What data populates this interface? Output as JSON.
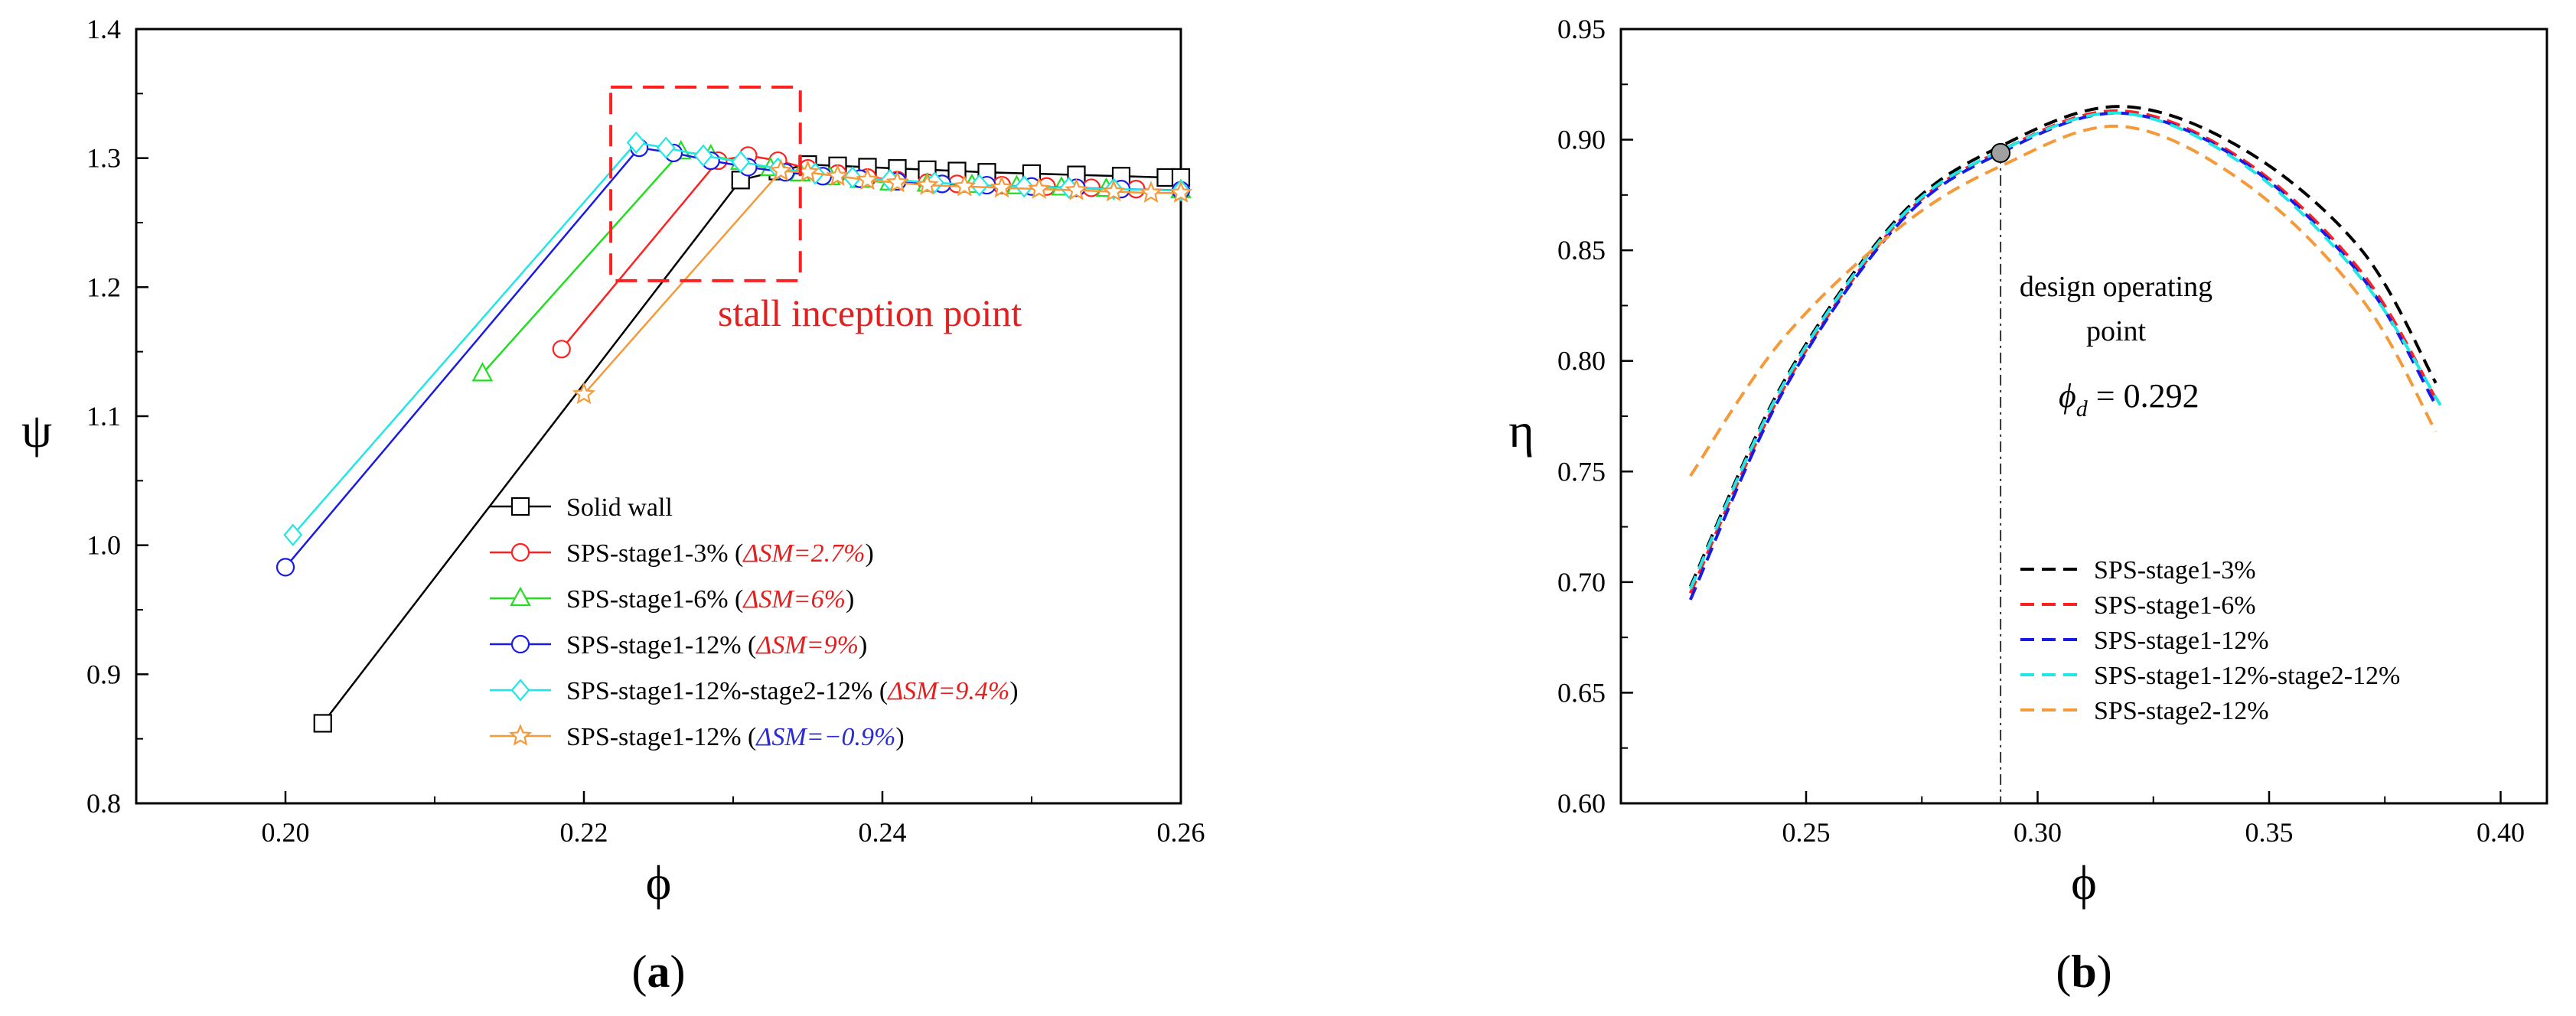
{
  "colors": {
    "black": "#000000",
    "red": "#ff2020",
    "green": "#22dd22",
    "blue": "#1a1ae6",
    "cyan": "#22e6e6",
    "orange": "#f59a3a",
    "annot_red": "#e32020",
    "annot_blue": "#2b2bd6",
    "marker_gray": "#a0a0a0"
  },
  "chart_data": [
    {
      "panel_label": "a",
      "type": "line",
      "xlabel": "ϕ",
      "ylabel": "ψ",
      "xlim": [
        0.19,
        0.26
      ],
      "ylim": [
        0.8,
        1.4
      ],
      "xticks": [
        0.2,
        0.22,
        0.24,
        0.26
      ],
      "xtick_labels": [
        "0.20",
        "0.22",
        "0.24",
        "0.26"
      ],
      "yticks": [
        0.8,
        0.9,
        1.0,
        1.1,
        1.2,
        1.3,
        1.4
      ],
      "ytick_labels": [
        "0.8",
        "0.9",
        "1.0",
        "1.1",
        "1.2",
        "1.3",
        "1.4"
      ],
      "annotation": "stall inception point",
      "stall_box": {
        "x": [
          0.2218,
          0.2345
        ],
        "y": [
          1.205,
          1.355
        ]
      },
      "series": [
        {
          "name": "Solid wall",
          "label": "Solid wall",
          "delta_sm": "",
          "delta_color": "",
          "marker": "square",
          "color": "#000000",
          "x": [
            0.2025,
            0.2305,
            0.233,
            0.235,
            0.237,
            0.239,
            0.241,
            0.243,
            0.245,
            0.247,
            0.25,
            0.253,
            0.256,
            0.259,
            0.26
          ],
          "y": [
            0.862,
            1.283,
            1.29,
            1.295,
            1.294,
            1.293,
            1.292,
            1.291,
            1.29,
            1.289,
            1.288,
            1.287,
            1.286,
            1.285,
            1.285
          ]
        },
        {
          "name": "SPS-stage1-3%",
          "label": "SPS-stage1-3%   (",
          "delta_sm": "ΔSM=2.7%",
          "delta_color": "#e32020",
          "marker": "circle",
          "color": "#ff2020",
          "x": [
            0.2185,
            0.229,
            0.231,
            0.233,
            0.235,
            0.237,
            0.239,
            0.241,
            0.243,
            0.245,
            0.248,
            0.251,
            0.254,
            0.257,
            0.26
          ],
          "y": [
            1.152,
            1.298,
            1.302,
            1.298,
            1.292,
            1.288,
            1.285,
            1.283,
            1.281,
            1.28,
            1.279,
            1.278,
            1.277,
            1.276,
            1.275
          ]
        },
        {
          "name": "SPS-stage1-6%",
          "label": "SPS-stage1-6%   (",
          "delta_sm": "ΔSM=6%",
          "delta_color": "#e32020",
          "marker": "triangle",
          "color": "#22dd22",
          "x": [
            0.2132,
            0.2265,
            0.2285,
            0.2305,
            0.2325,
            0.2345,
            0.2365,
            0.2385,
            0.2405,
            0.243,
            0.246,
            0.249,
            0.252,
            0.255,
            0.26
          ],
          "y": [
            1.133,
            1.305,
            1.302,
            1.297,
            1.292,
            1.288,
            1.285,
            1.283,
            1.281,
            1.28,
            1.279,
            1.278,
            1.277,
            1.276,
            1.275
          ]
        },
        {
          "name": "SPS-stage1-12%",
          "label": "SPS-stage1-12%  (",
          "delta_sm": "ΔSM=9%",
          "delta_color": "#e32020",
          "marker": "circle",
          "color": "#1a1ae6",
          "x": [
            0.2,
            0.2237,
            0.226,
            0.2285,
            0.231,
            0.2335,
            0.236,
            0.2385,
            0.241,
            0.244,
            0.247,
            0.25,
            0.253,
            0.256,
            0.26
          ],
          "y": [
            0.983,
            1.308,
            1.304,
            1.298,
            1.293,
            1.289,
            1.286,
            1.284,
            1.282,
            1.28,
            1.279,
            1.278,
            1.277,
            1.276,
            1.275
          ]
        },
        {
          "name": "SPS-stage1-12%-stage2-12%",
          "label": "SPS-stage1-12%-stage2-12% (",
          "delta_sm": "ΔSM=9.4%",
          "delta_color": "#e32020",
          "marker": "diamond",
          "color": "#22e6e6",
          "x": [
            0.2005,
            0.2235,
            0.2255,
            0.228,
            0.2305,
            0.233,
            0.2355,
            0.238,
            0.2405,
            0.2435,
            0.2465,
            0.2495,
            0.2525,
            0.2555,
            0.26
          ],
          "y": [
            1.008,
            1.312,
            1.308,
            1.302,
            1.297,
            1.292,
            1.288,
            1.285,
            1.283,
            1.281,
            1.279,
            1.278,
            1.277,
            1.276,
            1.275
          ]
        },
        {
          "name": "SPS-stage1-12% (ΔSM=−0.9%)",
          "label": "SPS-stage1-12% (",
          "delta_sm": "ΔSM=−0.9%",
          "delta_color": "#2b2bd6",
          "marker": "star",
          "color": "#f59a3a",
          "x": [
            0.22,
            0.2332,
            0.235,
            0.237,
            0.239,
            0.241,
            0.243,
            0.2455,
            0.248,
            0.2505,
            0.253,
            0.2555,
            0.258,
            0.26
          ],
          "y": [
            1.117,
            1.29,
            1.289,
            1.286,
            1.283,
            1.281,
            1.279,
            1.278,
            1.277,
            1.276,
            1.275,
            1.274,
            1.273,
            1.273
          ]
        }
      ]
    },
    {
      "panel_label": "b",
      "type": "line",
      "xlabel": "ϕ",
      "ylabel": "η",
      "xlim": [
        0.21,
        0.41
      ],
      "ylim": [
        0.6,
        0.95
      ],
      "xticks": [
        0.25,
        0.3,
        0.35,
        0.4
      ],
      "xtick_labels": [
        "0.25",
        "0.30",
        "0.35",
        "0.40"
      ],
      "yticks": [
        0.6,
        0.65,
        0.7,
        0.75,
        0.8,
        0.85,
        0.9,
        0.95
      ],
      "ytick_labels": [
        "0.60",
        "0.65",
        "0.70",
        "0.75",
        "0.80",
        "0.85",
        "0.90",
        "0.95"
      ],
      "design_point": {
        "x": 0.292,
        "y": 0.894
      },
      "annotation_line1": "design operating",
      "annotation_line2": "point",
      "annotation_phi": "ϕ",
      "annotation_sub": "d",
      "annotation_value": " = 0.292",
      "series": [
        {
          "name": "SPS-stage1-3%",
          "color": "#000000",
          "x": [
            0.225,
            0.245,
            0.27,
            0.292,
            0.318,
            0.345,
            0.37,
            0.386
          ],
          "y": [
            0.698,
            0.79,
            0.865,
            0.897,
            0.915,
            0.895,
            0.85,
            0.79
          ]
        },
        {
          "name": "SPS-stage1-6%",
          "color": "#ff2020",
          "x": [
            0.225,
            0.245,
            0.27,
            0.292,
            0.318,
            0.345,
            0.37,
            0.386
          ],
          "y": [
            0.695,
            0.787,
            0.863,
            0.895,
            0.913,
            0.89,
            0.84,
            0.783
          ]
        },
        {
          "name": "SPS-stage1-12%",
          "color": "#1a1ae6",
          "x": [
            0.225,
            0.245,
            0.27,
            0.292,
            0.318,
            0.345,
            0.37,
            0.386
          ],
          "y": [
            0.692,
            0.786,
            0.862,
            0.894,
            0.912,
            0.889,
            0.838,
            0.78
          ]
        },
        {
          "name": "SPS-stage1-12%-stage2-12%",
          "color": "#22e6e6",
          "x": [
            0.225,
            0.245,
            0.27,
            0.292,
            0.318,
            0.345,
            0.37,
            0.387
          ],
          "y": [
            0.697,
            0.789,
            0.864,
            0.895,
            0.912,
            0.888,
            0.837,
            0.78
          ]
        },
        {
          "name": "SPS-stage2-12%",
          "color": "#f59a3a",
          "x": [
            0.225,
            0.245,
            0.27,
            0.292,
            0.318,
            0.345,
            0.37,
            0.386
          ],
          "y": [
            0.748,
            0.81,
            0.86,
            0.888,
            0.906,
            0.88,
            0.828,
            0.768
          ]
        }
      ]
    }
  ]
}
